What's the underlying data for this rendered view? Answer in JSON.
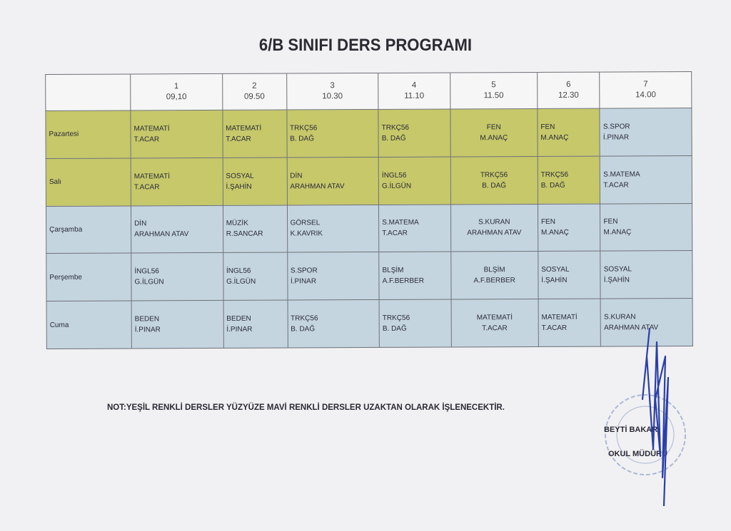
{
  "title": "6/B SINIFI DERS PROGRAMI",
  "periods": [
    {
      "num": "1",
      "time": "09,10"
    },
    {
      "num": "2",
      "time": "09.50"
    },
    {
      "num": "3",
      "time": "10.30"
    },
    {
      "num": "4",
      "time": "11.10"
    },
    {
      "num": "5",
      "time": "11.50"
    },
    {
      "num": "6",
      "time": "12.30"
    },
    {
      "num": "7",
      "time": "14.00"
    }
  ],
  "colors": {
    "green": "#c6c86a",
    "blue": "#c4d5e0"
  },
  "rows": [
    {
      "day": "Pazartesi",
      "cells": [
        {
          "subject": "MATEMATİ",
          "teacher": "T.ACAR",
          "color": "green"
        },
        {
          "subject": "MATEMATİ",
          "teacher": "T.ACAR",
          "color": "green"
        },
        {
          "subject": "TRKÇ56",
          "teacher": "B. DAĞ",
          "color": "green"
        },
        {
          "subject": "TRKÇ56",
          "teacher": "B. DAĞ",
          "color": "green"
        },
        {
          "subject": "FEN",
          "teacher": "M.ANAÇ",
          "color": "green"
        },
        {
          "subject": "FEN",
          "teacher": "M.ANAÇ",
          "color": "green"
        },
        {
          "subject": "S.SPOR",
          "teacher": "İ.PINAR",
          "color": "blue"
        }
      ]
    },
    {
      "day": "Salı",
      "cells": [
        {
          "subject": "MATEMATİ",
          "teacher": "T.ACAR",
          "color": "green"
        },
        {
          "subject": "SOSYAL",
          "teacher": "İ.ŞAHİN",
          "color": "green"
        },
        {
          "subject": "DİN",
          "teacher": "ARAHMAN ATAV",
          "color": "green"
        },
        {
          "subject": "İNGL56",
          "teacher": "G.İLGÜN",
          "color": "green"
        },
        {
          "subject": "TRKÇ56",
          "teacher": "B. DAĞ",
          "color": "green"
        },
        {
          "subject": "TRKÇ56",
          "teacher": "B. DAĞ",
          "color": "green"
        },
        {
          "subject": "S.MATEMA",
          "teacher": "T.ACAR",
          "color": "blue"
        }
      ]
    },
    {
      "day": "Çarşamba",
      "cells": [
        {
          "subject": "DİN",
          "teacher": "ARAHMAN ATAV",
          "color": "blue"
        },
        {
          "subject": "MÜZİK",
          "teacher": "R.SANCAR",
          "color": "blue"
        },
        {
          "subject": "GÖRSEL",
          "teacher": "K.KAVRIK",
          "color": "blue"
        },
        {
          "subject": "S.MATEMA",
          "teacher": "T.ACAR",
          "color": "blue"
        },
        {
          "subject": "S.KURAN",
          "teacher": "ARAHMAN ATAV",
          "color": "blue"
        },
        {
          "subject": "FEN",
          "teacher": "M.ANAÇ",
          "color": "blue"
        },
        {
          "subject": "FEN",
          "teacher": "M.ANAÇ",
          "color": "blue"
        }
      ]
    },
    {
      "day": "Perşembe",
      "cells": [
        {
          "subject": "İNGL56",
          "teacher": "G.İLGÜN",
          "color": "blue"
        },
        {
          "subject": "İNGL56",
          "teacher": "G.İLGÜN",
          "color": "blue"
        },
        {
          "subject": "S.SPOR",
          "teacher": "İ.PINAR",
          "color": "blue"
        },
        {
          "subject": "BLŞİM",
          "teacher": "A.F.BERBER",
          "color": "blue"
        },
        {
          "subject": "BLŞİM",
          "teacher": "A.F.BERBER",
          "color": "blue"
        },
        {
          "subject": "SOSYAL",
          "teacher": "İ.ŞAHİN",
          "color": "blue"
        },
        {
          "subject": "SOSYAL",
          "teacher": "İ.ŞAHİN",
          "color": "blue"
        }
      ]
    },
    {
      "day": "Cuma",
      "cells": [
        {
          "subject": "BEDEN",
          "teacher": "İ.PINAR",
          "color": "blue"
        },
        {
          "subject": "BEDEN",
          "teacher": "İ.PINAR",
          "color": "blue"
        },
        {
          "subject": "TRKÇ56",
          "teacher": "B. DAĞ",
          "color": "blue"
        },
        {
          "subject": "TRKÇ56",
          "teacher": "B. DAĞ",
          "color": "blue"
        },
        {
          "subject": "MATEMATİ",
          "teacher": "T.ACAR",
          "color": "blue"
        },
        {
          "subject": "MATEMATİ",
          "teacher": "T.ACAR",
          "color": "blue"
        },
        {
          "subject": "S.KURAN",
          "teacher": "ARAHMAN ATAV",
          "color": "blue"
        }
      ]
    }
  ],
  "note": "NOT:YEŞİL RENKLİ DERSLER YÜZYÜZE MAVİ RENKLİ DERSLER UZAKTAN OLARAK İŞLENECEKTİR.",
  "signature": {
    "name": "BEYTİ BAKAR",
    "role": "OKUL MÜDÜRÜ"
  }
}
